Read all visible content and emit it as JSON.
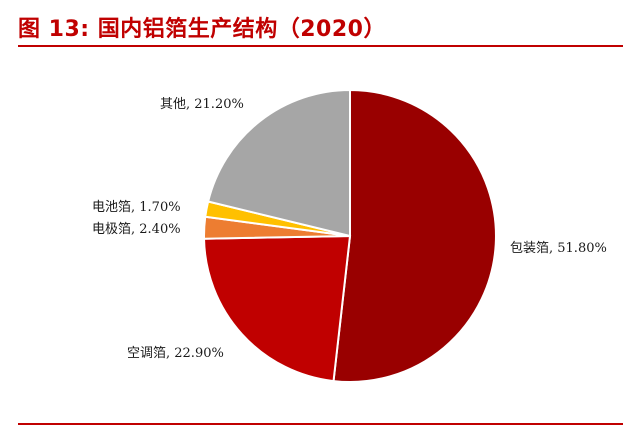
{
  "title": "图 13:  国内铝箔生产结构（2020）",
  "chart_data": {
    "type": "pie",
    "title": "图 13:  国内铝箔生产结构（2020）",
    "slices": [
      {
        "name": "包装箔",
        "value": 51.8,
        "label": "包装箔, 51.80%",
        "color": "#990000"
      },
      {
        "name": "空调箔",
        "value": 22.9,
        "label": "空调箔, 22.90%",
        "color": "#c00000"
      },
      {
        "name": "电极箔",
        "value": 2.4,
        "label": "电极箔, 2.40%",
        "color": "#ed7d31"
      },
      {
        "name": "电池箔",
        "value": 1.7,
        "label": "电池箔, 1.70%",
        "color": "#ffc000"
      },
      {
        "name": "其他",
        "value": 21.2,
        "label": "其他, 21.20%",
        "color": "#a6a6a6"
      }
    ]
  }
}
